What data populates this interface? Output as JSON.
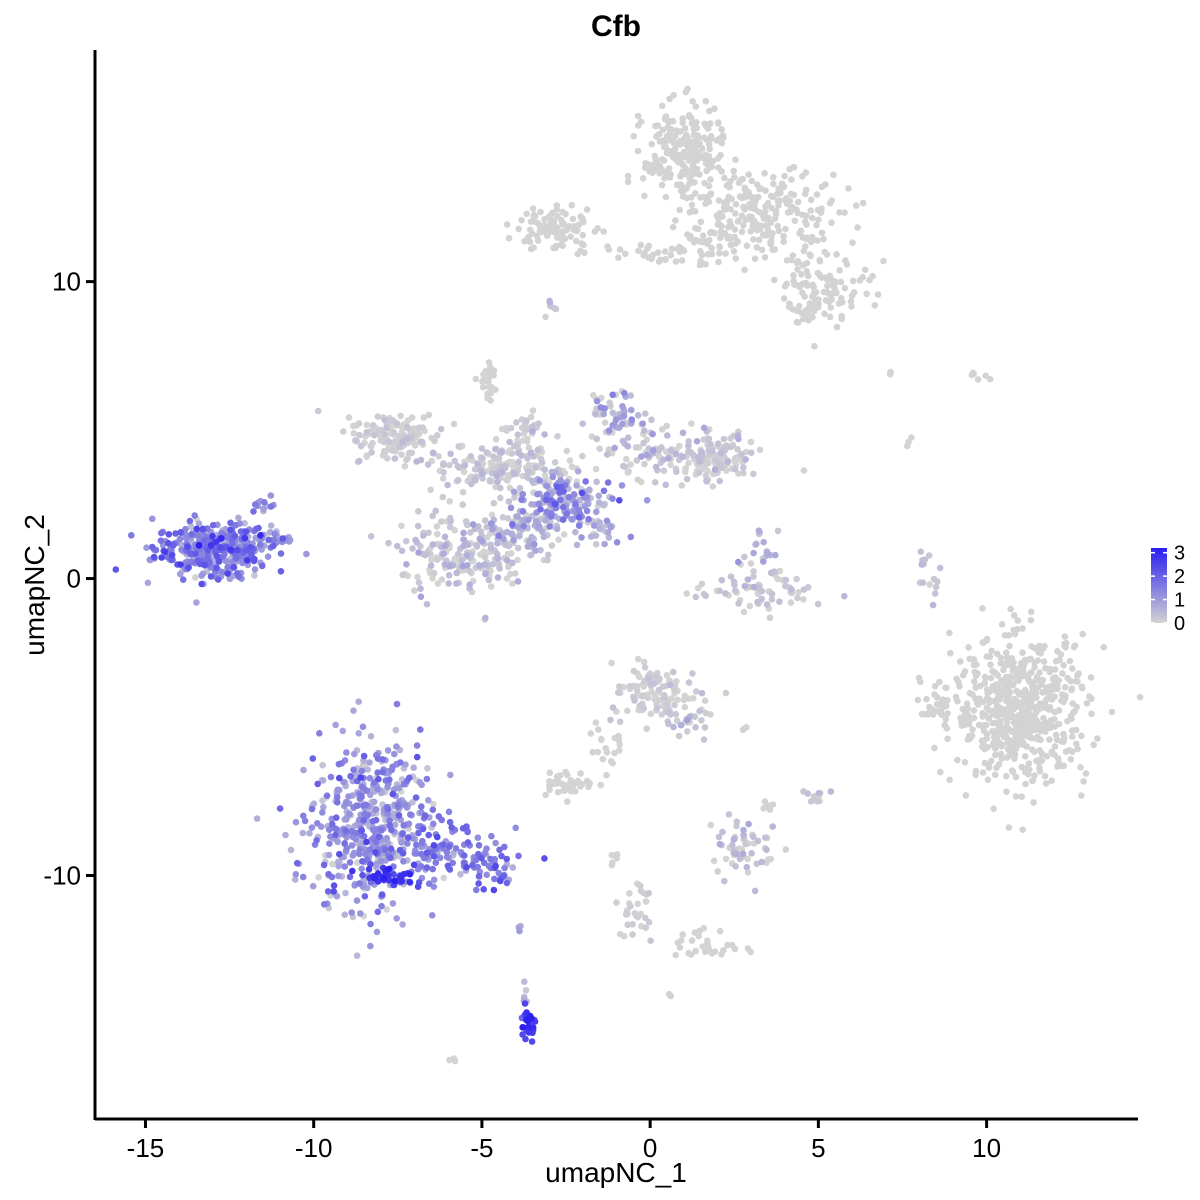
{
  "chart_data": {
    "type": "scatter",
    "title": "Cfb",
    "xlabel": "umapNC_1",
    "ylabel": "umapNC_2",
    "xlim": [
      -16.5,
      14.5
    ],
    "ylim": [
      -18.2,
      17.8
    ],
    "xticks": [
      -15,
      -10,
      -5,
      0,
      5,
      10
    ],
    "xtick_labels": [
      "-15",
      "-10",
      "-5",
      "0",
      "5",
      "10"
    ],
    "yticks": [
      -10,
      0,
      10
    ],
    "ytick_labels": [
      "-10",
      "0",
      "10"
    ],
    "grid": false,
    "legend": {
      "position": "right",
      "min": 0,
      "max": 3.2,
      "low_color": "#d3d3d3",
      "high_color": "#2a1ef0",
      "ticks": [
        0,
        1,
        2,
        3
      ],
      "tick_labels": [
        "0",
        "1",
        "2",
        "3"
      ]
    },
    "point_color": "#d3d3d3",
    "clusters": [
      {
        "cx": -13.0,
        "cy": 1.0,
        "sx": 0.85,
        "sy": 0.45,
        "n": 380,
        "expr": 1.35,
        "expr_sd": 0.6
      },
      {
        "cx": -11.6,
        "cy": 2.5,
        "sx": 0.2,
        "sy": 0.2,
        "n": 12,
        "expr": 1.0,
        "expr_sd": 0.4
      },
      {
        "cx": -11.0,
        "cy": 1.3,
        "sx": 0.3,
        "sy": 0.15,
        "n": 20,
        "expr": 0.9,
        "expr_sd": 0.4
      },
      {
        "cx": -8.3,
        "cy": -8.3,
        "sx": 0.9,
        "sy": 1.4,
        "n": 520,
        "expr": 0.95,
        "expr_sd": 0.6
      },
      {
        "cx": -7.8,
        "cy": -10.0,
        "sx": 0.35,
        "sy": 0.12,
        "n": 35,
        "expr": 2.8,
        "expr_sd": 0.3
      },
      {
        "cx": -6.0,
        "cy": -9.3,
        "sx": 1.0,
        "sy": 0.45,
        "n": 110,
        "expr": 1.4,
        "expr_sd": 0.5
      },
      {
        "cx": -4.6,
        "cy": -10.0,
        "sx": 0.35,
        "sy": 0.2,
        "n": 22,
        "expr": 1.6,
        "expr_sd": 0.5
      },
      {
        "cx": -3.6,
        "cy": -15.0,
        "sx": 0.12,
        "sy": 0.35,
        "n": 30,
        "expr": 2.6,
        "expr_sd": 0.4
      },
      {
        "cx": -3.7,
        "cy": -13.9,
        "sx": 0.05,
        "sy": 0.3,
        "n": 5,
        "expr": 0.4,
        "expr_sd": 0.3
      },
      {
        "cx": -5.9,
        "cy": -16.2,
        "sx": 0.08,
        "sy": 0.05,
        "n": 4,
        "expr": 0,
        "expr_sd": 0
      },
      {
        "cx": -3.9,
        "cy": -11.8,
        "sx": 0.04,
        "sy": 0.1,
        "n": 3,
        "expr": 0.8,
        "expr_sd": 0.3
      },
      {
        "cx": -7.5,
        "cy": 4.8,
        "sx": 0.7,
        "sy": 0.4,
        "n": 140,
        "expr": 0.05,
        "expr_sd": 0.15
      },
      {
        "cx": -4.5,
        "cy": 3.7,
        "sx": 1.1,
        "sy": 0.4,
        "n": 160,
        "expr": 0.1,
        "expr_sd": 0.2
      },
      {
        "cx": -4.8,
        "cy": 6.6,
        "sx": 0.15,
        "sy": 0.3,
        "n": 25,
        "expr": 0,
        "expr_sd": 0
      },
      {
        "cx": -3.8,
        "cy": 4.8,
        "sx": 0.4,
        "sy": 0.5,
        "n": 40,
        "expr": 0.1,
        "expr_sd": 0.2
      },
      {
        "cx": -2.6,
        "cy": 2.6,
        "sx": 0.7,
        "sy": 0.45,
        "n": 150,
        "expr": 0.9,
        "expr_sd": 0.6
      },
      {
        "cx": -5.5,
        "cy": 0.8,
        "sx": 0.95,
        "sy": 0.7,
        "n": 200,
        "expr": 0.2,
        "expr_sd": 0.3
      },
      {
        "cx": -3.8,
        "cy": 1.6,
        "sx": 0.6,
        "sy": 0.4,
        "n": 80,
        "expr": 0.4,
        "expr_sd": 0.4
      },
      {
        "cx": -1.7,
        "cy": 1.6,
        "sx": 0.5,
        "sy": 0.3,
        "n": 25,
        "expr": 0.4,
        "expr_sd": 0.4
      },
      {
        "cx": -1.0,
        "cy": 5.4,
        "sx": 0.4,
        "sy": 0.6,
        "n": 60,
        "expr": 0.6,
        "expr_sd": 0.5
      },
      {
        "cx": 0.5,
        "cy": 4.2,
        "sx": 0.9,
        "sy": 0.45,
        "n": 100,
        "expr": 0.2,
        "expr_sd": 0.3
      },
      {
        "cx": 2.0,
        "cy": 4.0,
        "sx": 0.6,
        "sy": 0.4,
        "n": 100,
        "expr": 0.05,
        "expr_sd": 0.15
      },
      {
        "cx": 1.0,
        "cy": 14.3,
        "sx": 0.6,
        "sy": 0.8,
        "n": 230,
        "expr": 0,
        "expr_sd": 0
      },
      {
        "cx": 3.5,
        "cy": 12.3,
        "sx": 1.1,
        "sy": 0.7,
        "n": 220,
        "expr": 0,
        "expr_sd": 0
      },
      {
        "cx": 5.2,
        "cy": 10.0,
        "sx": 0.7,
        "sy": 0.5,
        "n": 90,
        "expr": 0,
        "expr_sd": 0
      },
      {
        "cx": 4.8,
        "cy": 9.0,
        "sx": 0.4,
        "sy": 0.4,
        "n": 25,
        "expr": 0,
        "expr_sd": 0
      },
      {
        "cx": -2.8,
        "cy": 11.8,
        "sx": 0.6,
        "sy": 0.4,
        "n": 90,
        "expr": 0,
        "expr_sd": 0
      },
      {
        "cx": -0.5,
        "cy": 11.0,
        "sx": 0.8,
        "sy": 0.15,
        "n": 25,
        "expr": 0,
        "expr_sd": 0
      },
      {
        "cx": 1.5,
        "cy": 11.2,
        "sx": 0.5,
        "sy": 0.4,
        "n": 40,
        "expr": 0,
        "expr_sd": 0
      },
      {
        "cx": -2.9,
        "cy": 9.0,
        "sx": 0.1,
        "sy": 0.3,
        "n": 6,
        "expr": 0.3,
        "expr_sd": 0.3
      },
      {
        "cx": 3.2,
        "cy": -0.5,
        "sx": 0.9,
        "sy": 0.35,
        "n": 70,
        "expr": 0.1,
        "expr_sd": 0.2
      },
      {
        "cx": 3.2,
        "cy": 0.9,
        "sx": 0.3,
        "sy": 0.35,
        "n": 20,
        "expr": 0.3,
        "expr_sd": 0.3
      },
      {
        "cx": 8.2,
        "cy": 0.4,
        "sx": 0.2,
        "sy": 0.5,
        "n": 18,
        "expr": 0.2,
        "expr_sd": 0.2
      },
      {
        "cx": 11.0,
        "cy": -4.4,
        "sx": 1.0,
        "sy": 1.2,
        "n": 600,
        "expr": 0,
        "expr_sd": 0
      },
      {
        "cx": 8.5,
        "cy": -4.5,
        "sx": 0.25,
        "sy": 0.25,
        "n": 20,
        "expr": 0,
        "expr_sd": 0
      },
      {
        "cx": 0.1,
        "cy": -3.9,
        "sx": 0.6,
        "sy": 0.5,
        "n": 110,
        "expr": 0.05,
        "expr_sd": 0.15
      },
      {
        "cx": 1.2,
        "cy": -4.7,
        "sx": 0.3,
        "sy": 0.4,
        "n": 25,
        "expr": 0.2,
        "expr_sd": 0.3
      },
      {
        "cx": -1.2,
        "cy": -5.6,
        "sx": 0.3,
        "sy": 0.5,
        "n": 20,
        "expr": 0,
        "expr_sd": 0
      },
      {
        "cx": -2.5,
        "cy": -6.9,
        "sx": 0.4,
        "sy": 0.2,
        "n": 40,
        "expr": 0,
        "expr_sd": 0
      },
      {
        "cx": 2.8,
        "cy": -9.0,
        "sx": 0.5,
        "sy": 0.5,
        "n": 60,
        "expr": 0.15,
        "expr_sd": 0.25
      },
      {
        "cx": 5.0,
        "cy": -7.3,
        "sx": 0.15,
        "sy": 0.15,
        "n": 10,
        "expr": 0.2,
        "expr_sd": 0.2
      },
      {
        "cx": 3.4,
        "cy": -7.6,
        "sx": 0.1,
        "sy": 0.1,
        "n": 6,
        "expr": 0,
        "expr_sd": 0
      },
      {
        "cx": -0.4,
        "cy": -11.3,
        "sx": 0.25,
        "sy": 0.7,
        "n": 30,
        "expr": 0.05,
        "expr_sd": 0.1
      },
      {
        "cx": 1.7,
        "cy": -12.4,
        "sx": 0.5,
        "sy": 0.3,
        "n": 30,
        "expr": 0,
        "expr_sd": 0
      },
      {
        "cx": -1.0,
        "cy": -9.4,
        "sx": 0.1,
        "sy": 0.2,
        "n": 5,
        "expr": 0,
        "expr_sd": 0
      },
      {
        "cx": 9.7,
        "cy": 6.8,
        "sx": 0.3,
        "sy": 0.15,
        "n": 6,
        "expr": 0,
        "expr_sd": 0
      },
      {
        "cx": 7.1,
        "cy": 6.9,
        "sx": 0.05,
        "sy": 0.05,
        "n": 2,
        "expr": 0,
        "expr_sd": 0
      },
      {
        "cx": 7.7,
        "cy": 4.7,
        "sx": 0.05,
        "sy": 0.1,
        "n": 3,
        "expr": 0,
        "expr_sd": 0
      },
      {
        "cx": 0.6,
        "cy": -14.0,
        "sx": 0.05,
        "sy": 0.05,
        "n": 3,
        "expr": 0,
        "expr_sd": 0
      },
      {
        "cx": 2.7,
        "cy": -5.0,
        "sx": 0.1,
        "sy": 0.03,
        "n": 3,
        "expr": 0,
        "expr_sd": 0
      }
    ]
  }
}
